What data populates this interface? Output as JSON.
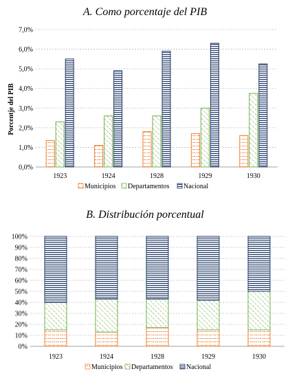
{
  "colors": {
    "municipios": "#ED7D31",
    "departamentos": "#70AD47",
    "nacional": "#1F3864",
    "grid": "#BFBFBF"
  },
  "chart_data": [
    {
      "type": "bar",
      "title": "A. Como porcentaje del PIB",
      "xlabel": "",
      "ylabel": "Porcentje del PIB",
      "categories": [
        "1923",
        "1924",
        "1928",
        "1929",
        "1930"
      ],
      "ylim": [
        0,
        7
      ],
      "yticks": [
        "0,0%",
        "1,0%",
        "2,0%",
        "3,0%",
        "4,0%",
        "5,0%",
        "6,0%",
        "7,0%"
      ],
      "grid": true,
      "legend_position": "bottom",
      "series": [
        {
          "name": "Municipios",
          "values": [
            1.35,
            1.1,
            1.8,
            1.7,
            1.6
          ]
        },
        {
          "name": "Departamentos",
          "values": [
            2.3,
            2.6,
            2.6,
            3.0,
            3.75
          ]
        },
        {
          "name": "Nacional",
          "values": [
            5.5,
            4.9,
            5.9,
            6.3,
            5.25
          ]
        }
      ]
    },
    {
      "type": "bar",
      "stacked": true,
      "title": "B. Distribución porcentual",
      "xlabel": "",
      "ylabel": "",
      "categories": [
        "1923",
        "1924",
        "1928",
        "1929",
        "1930"
      ],
      "ylim": [
        0,
        100
      ],
      "yticks": [
        "0%",
        "10%",
        "20%",
        "30%",
        "40%",
        "50%",
        "60%",
        "70%",
        "80%",
        "90%",
        "100%"
      ],
      "grid": true,
      "legend_position": "bottom",
      "series": [
        {
          "name": "Municipios",
          "values": [
            15,
            13,
            17,
            15,
            15
          ]
        },
        {
          "name": "Departamentos",
          "values": [
            25,
            30,
            26,
            27,
            35
          ]
        },
        {
          "name": "Nacional",
          "values": [
            60,
            57,
            57,
            58,
            50
          ]
        }
      ]
    }
  ]
}
